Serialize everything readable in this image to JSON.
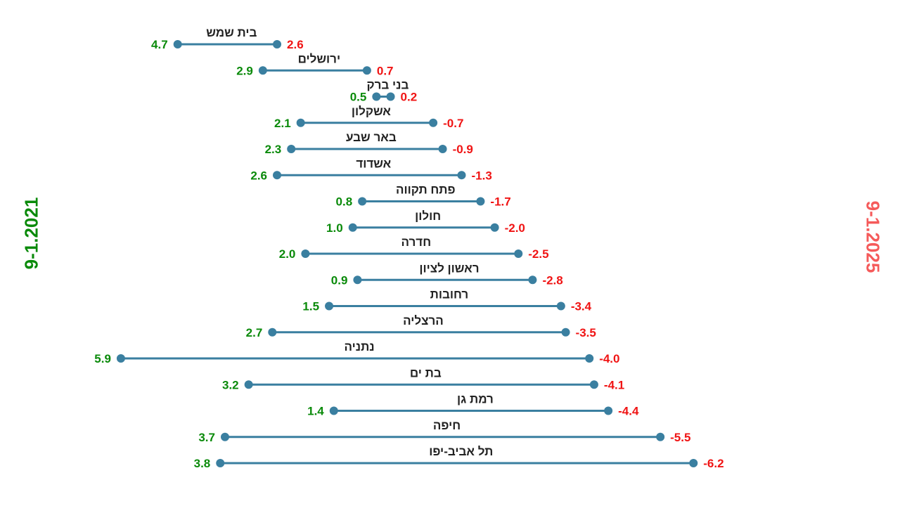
{
  "chart_data": {
    "type": "dumbbell",
    "title": "",
    "start_label": "9-1.2021",
    "end_label": "9-1.2025",
    "colors": {
      "start_text": "#0a8a0a",
      "end_text": "#f01414",
      "end_title": "#f55a5a",
      "line": "#3a7fa0"
    },
    "x_axis_reversed": true,
    "categories": [
      "בית שמש",
      "ירושלים",
      "בני ברק",
      "אשקלון",
      "באר שבע",
      "אשדוד",
      "פתח תקווה",
      "חולון",
      "חדרה",
      "ראשון לציון",
      "רחובות",
      "הרצליה",
      "נתניה",
      "בת ים",
      "רמת גן",
      "חיפה",
      "תל אביב-יפו"
    ],
    "series": [
      {
        "name": "9-1.2021",
        "values": [
          4.7,
          2.9,
          0.5,
          2.1,
          2.3,
          2.6,
          0.8,
          1.0,
          2.0,
          0.9,
          1.5,
          2.7,
          5.9,
          3.2,
          1.4,
          3.7,
          3.8
        ]
      },
      {
        "name": "9-1.2025",
        "values": [
          2.6,
          0.7,
          0.2,
          -0.7,
          -0.9,
          -1.3,
          -1.7,
          -2.0,
          -2.5,
          -2.8,
          -3.4,
          -3.5,
          -4.0,
          -4.1,
          -4.4,
          -5.5,
          -6.2
        ]
      }
    ],
    "start_labels": [
      "4.7",
      "2.9",
      "0.5",
      "2.1",
      "2.3",
      "2.6",
      "0.8",
      "1.0",
      "2.0",
      "0.9",
      "1.5",
      "2.7",
      "5.9",
      "3.2",
      "1.4",
      "3.7",
      "3.8"
    ],
    "end_labels": [
      "2.6",
      "0.7",
      "0.2",
      "-0.7",
      "-0.9",
      "-1.3",
      "-1.7",
      "-2.0",
      "-2.5",
      "-2.8",
      "-3.4",
      "-3.5",
      "-4.0",
      "-4.1",
      "-4.4",
      "-5.5",
      "-6.2"
    ],
    "grid": false,
    "legend": "none"
  }
}
